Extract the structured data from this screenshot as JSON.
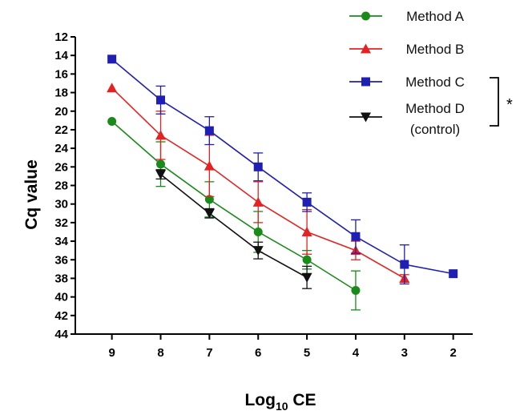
{
  "chart_data": {
    "type": "line",
    "xlabel": "Log10 CE",
    "xlabel_main": "Log",
    "xlabel_sub": "10",
    "xlabel_rest": " CE",
    "ylabel": "Cq value",
    "x_ticks": [
      9,
      8,
      7,
      6,
      5,
      4,
      3,
      2
    ],
    "xlim": [
      9.75,
      1.6
    ],
    "y_ticks": [
      12,
      14,
      16,
      18,
      20,
      22,
      24,
      26,
      28,
      30,
      32,
      34,
      36,
      38,
      40,
      42,
      44
    ],
    "ylim": [
      12,
      44
    ],
    "y_inverted": true,
    "series": [
      {
        "name": "Method A",
        "color": "#1a8a1a",
        "marker": "circle",
        "x": [
          9,
          8,
          7,
          6,
          5,
          4
        ],
        "y": [
          21.1,
          25.7,
          29.5,
          33.0,
          36.0,
          39.3
        ],
        "err": [
          0,
          2.4,
          1.9,
          2.2,
          1.0,
          2.1
        ]
      },
      {
        "name": "Method B",
        "color": "#e52222",
        "marker": "triangle-up",
        "x": [
          9,
          8,
          7,
          6,
          5,
          4,
          3
        ],
        "y": [
          17.5,
          22.6,
          25.9,
          29.8,
          33.0,
          35.0,
          38.0
        ],
        "err": [
          0,
          2.6,
          3.3,
          2.2,
          2.4,
          1.0,
          0.4
        ]
      },
      {
        "name": "Method C",
        "color": "#1f1fb3",
        "marker": "square",
        "x": [
          9,
          8,
          7,
          6,
          5,
          4,
          3,
          2
        ],
        "y": [
          14.4,
          18.8,
          22.1,
          26.0,
          29.8,
          33.5,
          36.5,
          37.5
        ],
        "err": [
          0,
          1.5,
          1.5,
          1.5,
          1.0,
          1.8,
          2.1,
          0
        ]
      },
      {
        "name": "Method D\n(control)",
        "legend_line1": "Method D",
        "legend_line2": "(control)",
        "color": "#111111",
        "marker": "triangle-down",
        "x": [
          8,
          7,
          6,
          5
        ],
        "y": [
          26.8,
          31.0,
          35.0,
          37.9
        ],
        "err": [
          0.5,
          0.5,
          0.9,
          1.2
        ]
      }
    ],
    "legend_position": "top-right",
    "significance_marker": "*",
    "significance_between": [
      "Method C",
      "Method D"
    ]
  }
}
